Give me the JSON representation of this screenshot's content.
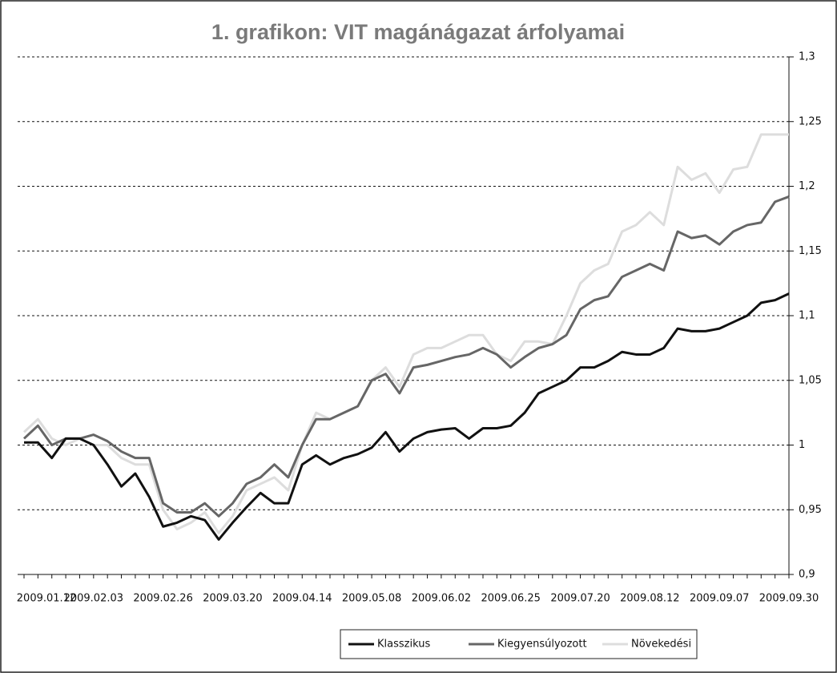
{
  "chart_data": {
    "type": "line",
    "title": "1. grafikon: VIT magánágazat árfolyamai",
    "categories": [
      "2009.01.12",
      null,
      null,
      null,
      null,
      "2009.02.03",
      null,
      null,
      null,
      null,
      "2009.02.26",
      null,
      null,
      null,
      null,
      "2009.03.20",
      null,
      null,
      null,
      null,
      "2009.04.14",
      null,
      null,
      null,
      null,
      "2009.05.08",
      null,
      null,
      null,
      null,
      "2009.06.02",
      null,
      null,
      null,
      null,
      "2009.06.25",
      null,
      null,
      null,
      null,
      "2009.07.20",
      null,
      null,
      null,
      null,
      "2009.08.12",
      null,
      null,
      null,
      null,
      "2009.09.07",
      null,
      null,
      null,
      null,
      "2009.09.30"
    ],
    "series": [
      {
        "name": "Klasszikus",
        "color": "#111111",
        "values": [
          1.002,
          1.002,
          0.99,
          1.005,
          1.005,
          1.0,
          0.985,
          0.968,
          0.978,
          0.96,
          0.937,
          0.94,
          0.945,
          0.942,
          0.927,
          0.94,
          0.952,
          0.963,
          0.955,
          0.955,
          0.985,
          0.992,
          0.985,
          0.99,
          0.993,
          0.998,
          1.01,
          0.995,
          1.005,
          1.01,
          1.012,
          1.013,
          1.005,
          1.013,
          1.013,
          1.015,
          1.025,
          1.04,
          1.045,
          1.05,
          1.06,
          1.06,
          1.065,
          1.072,
          1.07,
          1.07,
          1.075,
          1.09,
          1.088,
          1.088,
          1.09,
          1.095,
          1.1,
          1.11,
          1.112,
          1.117
        ]
      },
      {
        "name": "Kiegyensúlyozott",
        "color": "#666666",
        "values": [
          1.005,
          1.015,
          1.0,
          1.005,
          1.005,
          1.008,
          1.003,
          0.995,
          0.99,
          0.99,
          0.955,
          0.948,
          0.948,
          0.955,
          0.945,
          0.955,
          0.97,
          0.975,
          0.985,
          0.975,
          1.0,
          1.02,
          1.02,
          1.025,
          1.03,
          1.05,
          1.055,
          1.04,
          1.06,
          1.062,
          1.065,
          1.068,
          1.07,
          1.075,
          1.07,
          1.06,
          1.068,
          1.075,
          1.078,
          1.085,
          1.105,
          1.112,
          1.115,
          1.13,
          1.135,
          1.14,
          1.135,
          1.165,
          1.16,
          1.162,
          1.155,
          1.165,
          1.17,
          1.172,
          1.188,
          1.192
        ]
      },
      {
        "name": "Növekedési",
        "color": "#dddddd",
        "values": [
          1.01,
          1.02,
          1.005,
          1.0,
          1.005,
          1.0,
          1.0,
          0.99,
          0.985,
          0.985,
          0.95,
          0.935,
          0.94,
          0.948,
          0.932,
          0.945,
          0.965,
          0.97,
          0.975,
          0.965,
          1.0,
          1.025,
          1.02,
          1.025,
          1.03,
          1.05,
          1.06,
          1.045,
          1.07,
          1.075,
          1.075,
          1.08,
          1.085,
          1.085,
          1.07,
          1.065,
          1.08,
          1.08,
          1.078,
          1.1,
          1.125,
          1.135,
          1.14,
          1.165,
          1.17,
          1.18,
          1.17,
          1.215,
          1.205,
          1.21,
          1.195,
          1.213,
          1.215,
          1.24,
          1.24,
          1.24
        ]
      }
    ],
    "ylim": [
      0.9,
      1.3
    ],
    "yticks": [
      {
        "value": 0.9,
        "label": "0,9"
      },
      {
        "value": 0.95,
        "label": "0,95"
      },
      1,
      {
        "value": 1.05,
        "label": "1,05"
      },
      {
        "value": 1.1,
        "label": "1,1"
      },
      {
        "value": 1.15,
        "label": "1,15"
      },
      {
        "value": 1.2,
        "label": "1,2"
      },
      {
        "value": 1.25,
        "label": "1,25"
      },
      {
        "value": 1.3,
        "label": "1,3"
      }
    ],
    "grid": true,
    "legend": "bottom"
  }
}
